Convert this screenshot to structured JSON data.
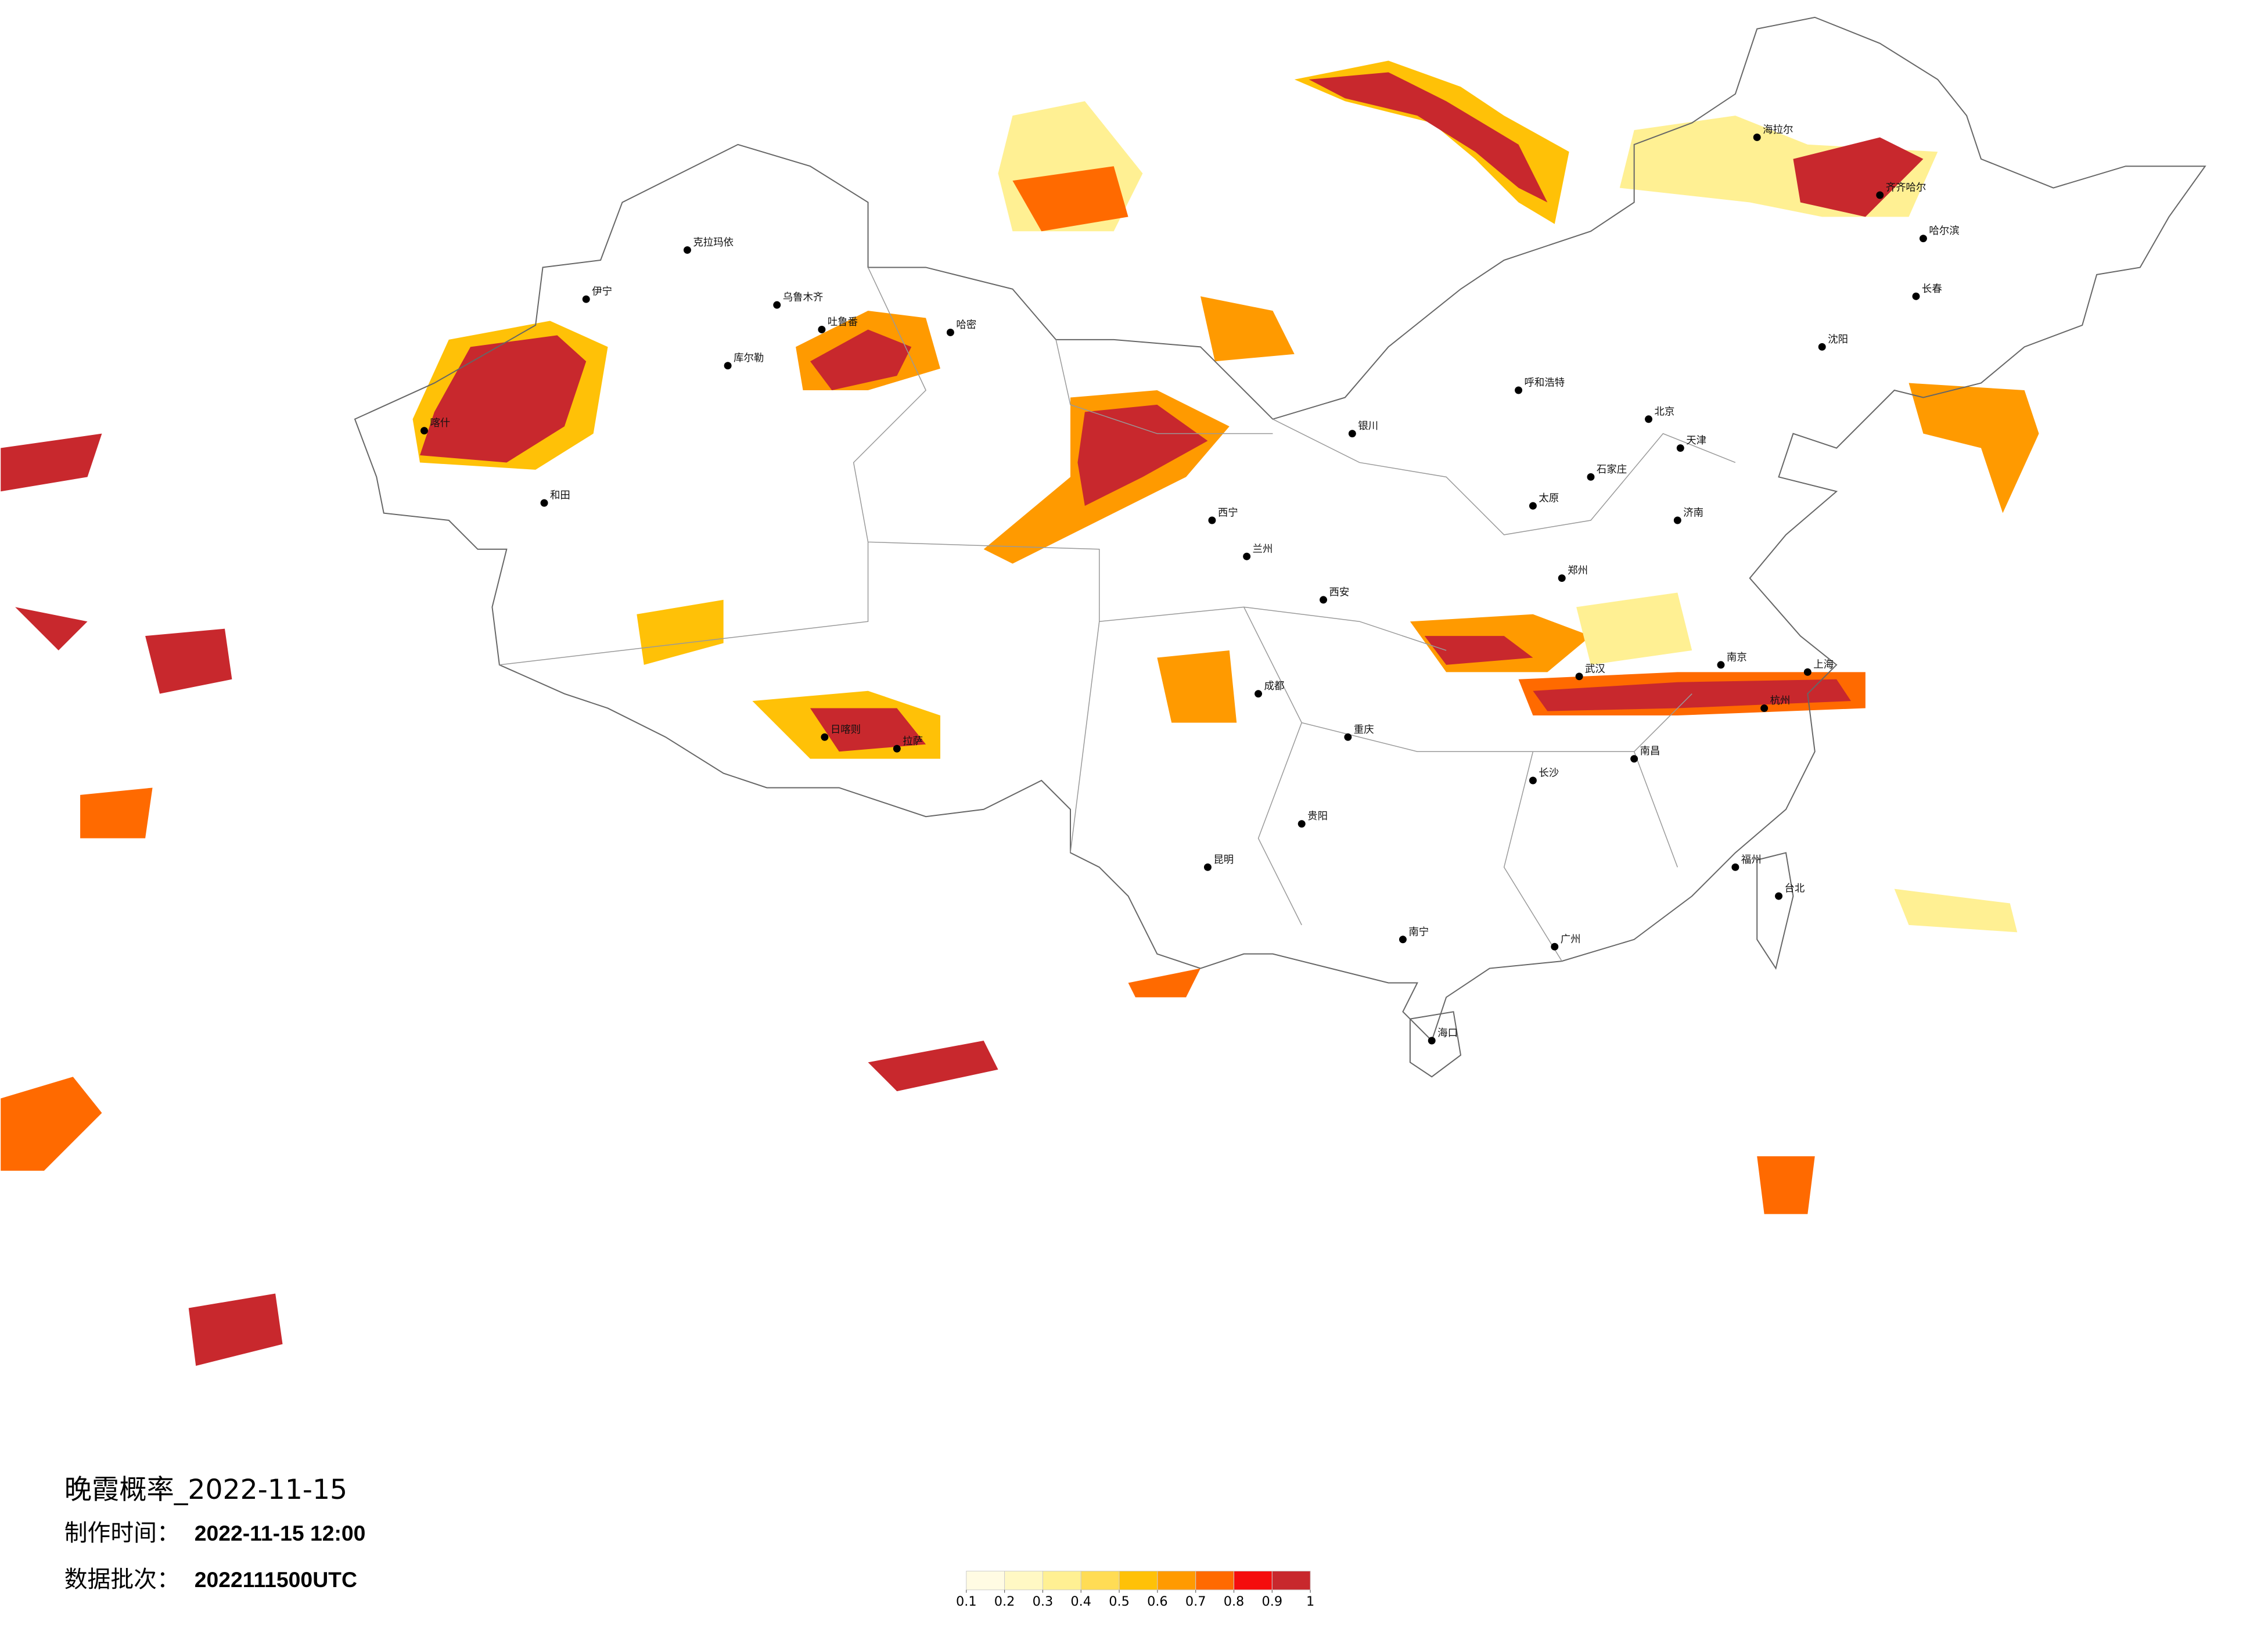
{
  "title": "晚霞概率_2022-11-15",
  "production_time": {
    "label": "制作时间：",
    "value": "2022-11-15 12:00"
  },
  "data_batch": {
    "label": "数据批次：",
    "value": "2022111500UTC"
  },
  "legend": {
    "colors": [
      "#fffbe3",
      "#fff8c4",
      "#fff093",
      "#ffdc55",
      "#ffc107",
      "#ff9a00",
      "#ff6a00",
      "#f50d0d",
      "#c8282d"
    ],
    "ticks": [
      0.1,
      0.2,
      0.3,
      0.4,
      0.5,
      0.6,
      0.7,
      0.8,
      0.9,
      1
    ]
  },
  "cities": [
    "克拉玛依",
    "伊宁",
    "乌鲁木齐",
    "吐鲁番",
    "哈密",
    "库尔勒",
    "和田",
    "喀什",
    "拉萨",
    "日喀则",
    "西宁",
    "兰州",
    "银川",
    "呼和浩特",
    "北京",
    "天津",
    "石家庄",
    "太原",
    "济南",
    "郑州",
    "西安",
    "武汉",
    "成都",
    "重庆",
    "贵阳",
    "昆明",
    "南宁",
    "广州",
    "长沙",
    "南昌",
    "杭州",
    "上海",
    "南京",
    "福州",
    "台北",
    "海口",
    "沈阳",
    "长春",
    "哈尔滨",
    "齐齐哈尔",
    "海拉尔"
  ]
}
